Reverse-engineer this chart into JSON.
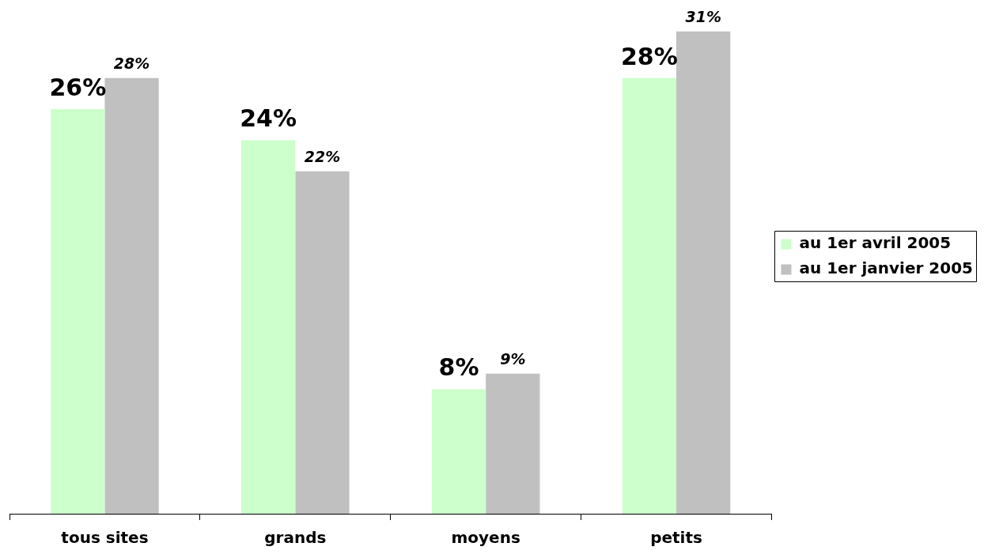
{
  "chart_data": {
    "type": "bar",
    "categories": [
      "tous sites",
      "grands",
      "moyens",
      "petits"
    ],
    "series": [
      {
        "name": "au 1er avril 2005",
        "color": "#ccffcc",
        "values": [
          26,
          24,
          8,
          28
        ],
        "value_labels": [
          "26%",
          "24%",
          "8%",
          "28%"
        ]
      },
      {
        "name": "au 1er janvier 2005",
        "color": "#c0c0c0",
        "values": [
          28,
          22,
          9,
          31
        ],
        "value_labels": [
          "28%",
          "22%",
          "9%",
          "31%"
        ]
      }
    ],
    "legend": "right",
    "tick_labels": "x"
  }
}
